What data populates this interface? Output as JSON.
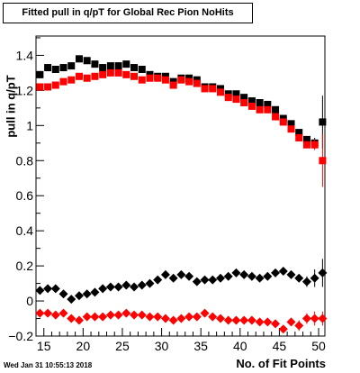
{
  "title": "Fitted pull in q/pT  for Global Rec Pion NoHits",
  "timestamp": "Wed Jan 31 10:55:13 2018",
  "chart_data": {
    "type": "scatter",
    "xlabel": "No. of Fit Points",
    "ylabel": "pull in q/pT",
    "xlim": [
      14,
      50.8
    ],
    "ylim": [
      -0.2,
      1.51
    ],
    "x_ticks": [
      15,
      20,
      25,
      30,
      35,
      40,
      45,
      50
    ],
    "y_ticks": [
      -0.2,
      0,
      0.2,
      0.4,
      0.6,
      0.8,
      1,
      1.2,
      1.4
    ],
    "y_tick_labels": [
      "−0.2",
      "0",
      "0.2",
      "0.4",
      "0.6",
      "0.8",
      "1",
      "1.2",
      "1.4"
    ],
    "x": [
      14.5,
      15.5,
      16.5,
      17.5,
      18.5,
      19.5,
      20.5,
      21.5,
      22.5,
      23.5,
      24.5,
      25.5,
      26.5,
      27.5,
      28.5,
      29.5,
      30.5,
      31.5,
      32.5,
      33.5,
      34.5,
      35.5,
      36.5,
      37.5,
      38.5,
      39.5,
      40.5,
      41.5,
      42.5,
      43.5,
      44.5,
      45.5,
      46.5,
      47.5,
      48.5,
      49.5,
      50.5
    ],
    "series": [
      {
        "color": "#000000",
        "marker": "square",
        "values": [
          1.29,
          1.33,
          1.32,
          1.33,
          1.34,
          1.38,
          1.37,
          1.35,
          1.33,
          1.34,
          1.34,
          1.35,
          1.33,
          1.32,
          1.29,
          1.28,
          1.28,
          1.25,
          1.27,
          1.27,
          1.26,
          1.22,
          1.22,
          1.21,
          1.18,
          1.18,
          1.16,
          1.14,
          1.13,
          1.12,
          1.09,
          1.04,
          1.01,
          0.96,
          0.92,
          0.9,
          1.02
        ],
        "errors": [
          0.02,
          0.015,
          0.01,
          0.01,
          0.01,
          0.01,
          0.01,
          0.01,
          0.01,
          0.01,
          0.01,
          0.01,
          0.01,
          0.01,
          0.01,
          0.01,
          0.01,
          0.01,
          0.01,
          0.01,
          0.01,
          0.01,
          0.01,
          0.01,
          0.01,
          0.01,
          0.01,
          0.01,
          0.01,
          0.01,
          0.01,
          0.01,
          0.01,
          0.01,
          0.02,
          0.03,
          0.15
        ]
      },
      {
        "color": "#ff0000",
        "marker": "square",
        "values": [
          1.22,
          1.22,
          1.23,
          1.25,
          1.26,
          1.28,
          1.27,
          1.28,
          1.29,
          1.3,
          1.3,
          1.29,
          1.28,
          1.26,
          1.27,
          1.27,
          1.26,
          1.23,
          1.26,
          1.25,
          1.24,
          1.21,
          1.21,
          1.19,
          1.16,
          1.15,
          1.13,
          1.11,
          1.09,
          1.09,
          1.05,
          1.02,
          0.98,
          0.93,
          0.89,
          0.89,
          0.8
        ],
        "errors": [
          0.02,
          0.015,
          0.01,
          0.01,
          0.01,
          0.01,
          0.01,
          0.01,
          0.01,
          0.01,
          0.01,
          0.01,
          0.01,
          0.01,
          0.01,
          0.01,
          0.01,
          0.01,
          0.01,
          0.01,
          0.01,
          0.01,
          0.01,
          0.01,
          0.01,
          0.01,
          0.01,
          0.01,
          0.01,
          0.01,
          0.01,
          0.01,
          0.01,
          0.01,
          0.02,
          0.03,
          0.15
        ]
      },
      {
        "color": "#000000",
        "marker": "diamond",
        "values": [
          0.06,
          0.07,
          0.07,
          0.04,
          0.01,
          0.03,
          0.04,
          0.05,
          0.07,
          0.08,
          0.08,
          0.09,
          0.08,
          0.09,
          0.1,
          0.12,
          0.15,
          0.13,
          0.15,
          0.14,
          0.11,
          0.12,
          0.12,
          0.13,
          0.14,
          0.16,
          0.15,
          0.14,
          0.13,
          0.14,
          0.16,
          0.17,
          0.15,
          0.13,
          0.11,
          0.13,
          0.16
        ],
        "errors": [
          0.02,
          0.015,
          0.01,
          0.01,
          0.01,
          0.01,
          0.01,
          0.01,
          0.01,
          0.01,
          0.01,
          0.01,
          0.01,
          0.01,
          0.01,
          0.01,
          0.01,
          0.01,
          0.01,
          0.01,
          0.01,
          0.01,
          0.01,
          0.01,
          0.01,
          0.01,
          0.01,
          0.01,
          0.01,
          0.01,
          0.01,
          0.01,
          0.01,
          0.02,
          0.03,
          0.05,
          0.08
        ]
      },
      {
        "color": "#ff0000",
        "marker": "diamond",
        "values": [
          -0.07,
          -0.07,
          -0.08,
          -0.07,
          -0.1,
          -0.11,
          -0.09,
          -0.09,
          -0.09,
          -0.08,
          -0.08,
          -0.07,
          -0.08,
          -0.08,
          -0.09,
          -0.09,
          -0.1,
          -0.11,
          -0.1,
          -0.09,
          -0.09,
          -0.07,
          -0.09,
          -0.1,
          -0.11,
          -0.11,
          -0.11,
          -0.11,
          -0.12,
          -0.12,
          -0.13,
          -0.16,
          -0.12,
          -0.14,
          -0.1,
          -0.1,
          -0.1
        ],
        "errors": [
          0.02,
          0.015,
          0.01,
          0.01,
          0.01,
          0.01,
          0.01,
          0.01,
          0.01,
          0.01,
          0.01,
          0.01,
          0.01,
          0.01,
          0.01,
          0.01,
          0.01,
          0.01,
          0.01,
          0.01,
          0.01,
          0.01,
          0.01,
          0.01,
          0.01,
          0.01,
          0.01,
          0.01,
          0.01,
          0.01,
          0.01,
          0.01,
          0.02,
          0.03,
          0.03,
          0.04,
          0.04
        ]
      }
    ]
  }
}
